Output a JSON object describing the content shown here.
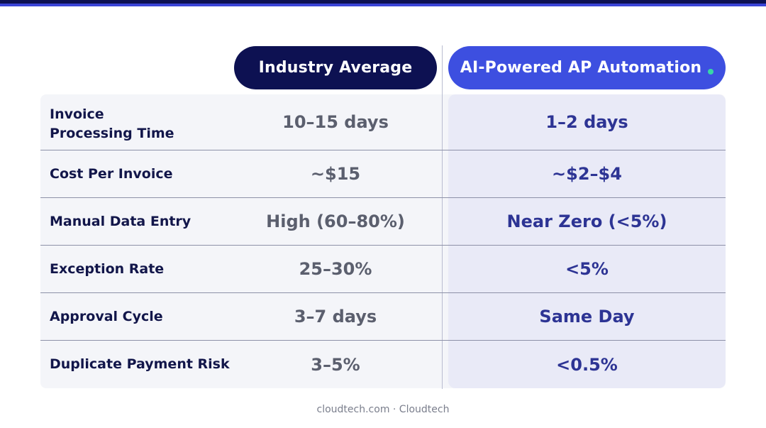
{
  "header": {
    "industry_label": "Industry Average",
    "ai_label": "AI-Powered AP Automation"
  },
  "rows": [
    {
      "label": "Invoice\nProcessing Time",
      "industry": "10–15 days",
      "ai": "1–2 days"
    },
    {
      "label": "Cost Per Invoice",
      "industry": "~$15",
      "ai": "~$2–$4"
    },
    {
      "label": "Manual Data Entry",
      "industry": "High (60–80%)",
      "ai": "Near Zero (<5%)"
    },
    {
      "label": "Exception Rate",
      "industry": "25–30%",
      "ai": "<5%"
    },
    {
      "label": "Approval Cycle",
      "industry": "3–7 days",
      "ai": "Same Day"
    },
    {
      "label": "Duplicate Payment Risk",
      "industry": "3–5%",
      "ai": "<0.5%"
    }
  ],
  "footer": {
    "text": "cloudtech.com · Cloudtech"
  },
  "colors": {
    "navy": "#0d1152",
    "accent_blue": "#3d4fe0",
    "dot_teal": "#38d7a7"
  }
}
